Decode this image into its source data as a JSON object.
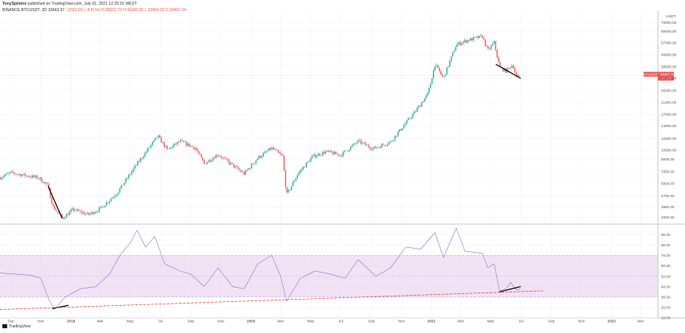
{
  "header": {
    "author": "TonySpilotro",
    "published": "published on TradingView.com, July 01, 2021 12:25:16 WEST",
    "symbol": "BINANCE:BTCUSDT, 3D",
    "last": "33463.97",
    "change": "−1581.03 (−4.51%)",
    "open": "O:35021.73",
    "high": "H:36100.00",
    "low": "L:32800.00",
    "close": "C:33467.34"
  },
  "footer": {
    "brand": "TradingView"
  },
  "colors": {
    "up": "#26a69a",
    "down": "#ef5350",
    "rsi": "#7e57c2",
    "rsi_band": "#e1bee7",
    "trend": "#e53935",
    "divergence": "#000000"
  },
  "chart_data": [
    {
      "type": "candlestick",
      "title": "BINANCE:BTCUSDT, 3D",
      "y_scale": "log",
      "currency_label": "USDT",
      "y_ticks": [
        "3360.00",
        "3960.00",
        "4750.00",
        "5800.00",
        "7050.00",
        "8600.00",
        "10000.00",
        "12000.00",
        "14800.00",
        "17800.00",
        "21600.00",
        "26300.00",
        "32000.00",
        "38600.00",
        "46800.00",
        "57000.00",
        "68400.00",
        "79000.00"
      ],
      "x_ticks": [
        "Sep",
        "Nov",
        "2019",
        "Mar",
        "May",
        "Jul",
        "Sep",
        "Nov",
        "2020",
        "Mar",
        "May",
        "Jul",
        "Sep",
        "Nov",
        "2021",
        "Mar",
        "May",
        "Jul",
        "Sep",
        "Nov",
        "2022",
        "Mar"
      ],
      "last_price_label": "BTCUSDT",
      "last_price_value": "33467.34",
      "last_price_time": "1d 10h",
      "approx_close_path": [
        {
          "date": "2018-08-10",
          "close": 6400
        },
        {
          "date": "2018-09-01",
          "close": 6900
        },
        {
          "date": "2018-10-01",
          "close": 6600
        },
        {
          "date": "2018-10-28",
          "close": 6350
        },
        {
          "date": "2018-11-15",
          "close": 5600
        },
        {
          "date": "2018-11-25",
          "close": 4000
        },
        {
          "date": "2018-12-15",
          "close": 3300
        },
        {
          "date": "2019-01-05",
          "close": 3800
        },
        {
          "date": "2019-02-05",
          "close": 3500
        },
        {
          "date": "2019-03-01",
          "close": 3850
        },
        {
          "date": "2019-04-05",
          "close": 5000
        },
        {
          "date": "2019-05-15",
          "close": 8000
        },
        {
          "date": "2019-06-26",
          "close": 12500
        },
        {
          "date": "2019-07-15",
          "close": 10000
        },
        {
          "date": "2019-08-10",
          "close": 11500
        },
        {
          "date": "2019-09-10",
          "close": 10300
        },
        {
          "date": "2019-09-28",
          "close": 8000
        },
        {
          "date": "2019-10-26",
          "close": 9300
        },
        {
          "date": "2019-12-01",
          "close": 7500
        },
        {
          "date": "2019-12-18",
          "close": 6800
        },
        {
          "date": "2020-01-15",
          "close": 8800
        },
        {
          "date": "2020-02-12",
          "close": 10300
        },
        {
          "date": "2020-03-05",
          "close": 9000
        },
        {
          "date": "2020-03-13",
          "close": 4800
        },
        {
          "date": "2020-04-05",
          "close": 6800
        },
        {
          "date": "2020-05-05",
          "close": 9000
        },
        {
          "date": "2020-06-01",
          "close": 9700
        },
        {
          "date": "2020-07-01",
          "close": 9200
        },
        {
          "date": "2020-08-05",
          "close": 11500
        },
        {
          "date": "2020-09-05",
          "close": 10200
        },
        {
          "date": "2020-10-10",
          "close": 11400
        },
        {
          "date": "2020-11-10",
          "close": 15500
        },
        {
          "date": "2020-12-01",
          "close": 19000
        },
        {
          "date": "2020-12-25",
          "close": 25000
        },
        {
          "date": "2021-01-08",
          "close": 40000
        },
        {
          "date": "2021-01-25",
          "close": 32000
        },
        {
          "date": "2021-02-20",
          "close": 55000
        },
        {
          "date": "2021-03-13",
          "close": 59000
        },
        {
          "date": "2021-04-14",
          "close": 63000
        },
        {
          "date": "2021-04-25",
          "close": 50000
        },
        {
          "date": "2021-05-08",
          "close": 57000
        },
        {
          "date": "2021-05-19",
          "close": 38000
        },
        {
          "date": "2021-06-01",
          "close": 36000
        },
        {
          "date": "2021-06-15",
          "close": 40000
        },
        {
          "date": "2021-06-22",
          "close": 32500
        },
        {
          "date": "2021-06-30",
          "close": 33467
        }
      ],
      "annotations": [
        {
          "type": "divergence-line",
          "from": {
            "date": "2018-11-16",
            "price": 5500
          },
          "to": {
            "date": "2018-12-14",
            "price": 3300
          }
        },
        {
          "type": "divergence-line",
          "from": {
            "date": "2021-05-12",
            "price": 40000
          },
          "to": {
            "date": "2021-06-30",
            "price": 32000
          }
        }
      ]
    },
    {
      "type": "line",
      "title": "RSI",
      "ylim": [
        10,
        100
      ],
      "y_ticks": [
        "100.00",
        "90.00",
        "80.00",
        "70.00",
        "60.00",
        "50.00",
        "40.00",
        "30.00",
        "20.00",
        "10.00"
      ],
      "band": [
        30,
        70
      ],
      "values": [
        {
          "date": "2018-08-10",
          "rsi": 53
        },
        {
          "date": "2018-09-10",
          "rsi": 52
        },
        {
          "date": "2018-10-10",
          "rsi": 51
        },
        {
          "date": "2018-11-01",
          "rsi": 48
        },
        {
          "date": "2018-11-15",
          "rsi": 30
        },
        {
          "date": "2018-11-28",
          "rsi": 18
        },
        {
          "date": "2018-12-20",
          "rsi": 30
        },
        {
          "date": "2019-01-20",
          "rsi": 38
        },
        {
          "date": "2019-02-20",
          "rsi": 40
        },
        {
          "date": "2019-03-20",
          "rsi": 52
        },
        {
          "date": "2019-04-10",
          "rsi": 70
        },
        {
          "date": "2019-05-01",
          "rsi": 82
        },
        {
          "date": "2019-05-15",
          "rsi": 94
        },
        {
          "date": "2019-06-01",
          "rsi": 78
        },
        {
          "date": "2019-06-20",
          "rsi": 88
        },
        {
          "date": "2019-07-10",
          "rsi": 62
        },
        {
          "date": "2019-08-10",
          "rsi": 55
        },
        {
          "date": "2019-09-01",
          "rsi": 52
        },
        {
          "date": "2019-09-28",
          "rsi": 40
        },
        {
          "date": "2019-10-26",
          "rsi": 58
        },
        {
          "date": "2019-11-25",
          "rsi": 40
        },
        {
          "date": "2019-12-18",
          "rsi": 38
        },
        {
          "date": "2020-01-15",
          "rsi": 62
        },
        {
          "date": "2020-02-12",
          "rsi": 70
        },
        {
          "date": "2020-03-01",
          "rsi": 50
        },
        {
          "date": "2020-03-13",
          "rsi": 26
        },
        {
          "date": "2020-04-10",
          "rsi": 48
        },
        {
          "date": "2020-05-10",
          "rsi": 55
        },
        {
          "date": "2020-06-10",
          "rsi": 52
        },
        {
          "date": "2020-07-10",
          "rsi": 48
        },
        {
          "date": "2020-08-05",
          "rsi": 66
        },
        {
          "date": "2020-09-10",
          "rsi": 50
        },
        {
          "date": "2020-10-10",
          "rsi": 58
        },
        {
          "date": "2020-11-10",
          "rsi": 78
        },
        {
          "date": "2020-12-10",
          "rsi": 76
        },
        {
          "date": "2021-01-08",
          "rsi": 92
        },
        {
          "date": "2021-01-25",
          "rsi": 68
        },
        {
          "date": "2021-02-20",
          "rsi": 96
        },
        {
          "date": "2021-03-10",
          "rsi": 74
        },
        {
          "date": "2021-04-14",
          "rsi": 72
        },
        {
          "date": "2021-04-25",
          "rsi": 58
        },
        {
          "date": "2021-05-08",
          "rsi": 62
        },
        {
          "date": "2021-05-19",
          "rsi": 36
        },
        {
          "date": "2021-06-01",
          "rsi": 38
        },
        {
          "date": "2021-06-10",
          "rsi": 44
        },
        {
          "date": "2021-06-22",
          "rsi": 37
        },
        {
          "date": "2021-06-30",
          "rsi": 38
        }
      ],
      "annotations": [
        {
          "type": "divergence-line",
          "from": {
            "date": "2018-11-25",
            "rsi": 19
          },
          "to": {
            "date": "2018-12-26",
            "rsi": 22
          }
        },
        {
          "type": "divergence-line",
          "from": {
            "date": "2021-05-19",
            "rsi": 35
          },
          "to": {
            "date": "2021-06-30",
            "rsi": 40
          }
        },
        {
          "type": "trend-line",
          "from": {
            "date": "2018-08-10",
            "rsi": 18
          },
          "to": {
            "date": "2021-08-15",
            "rsi": 36
          }
        }
      ]
    }
  ]
}
